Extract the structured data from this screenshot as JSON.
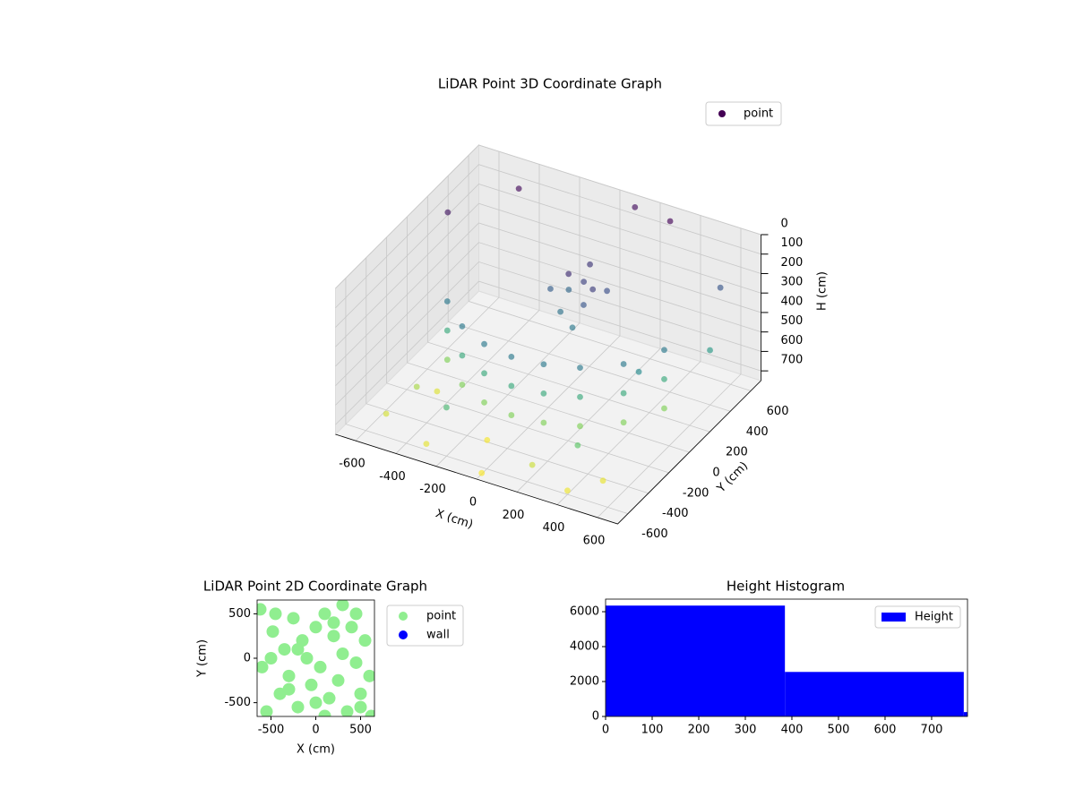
{
  "chart_data": [
    {
      "type": "scatter3d",
      "title": "LiDAR Point 3D Coordinate Graph",
      "xlabel": "X (cm)",
      "ylabel": "Y (cm)",
      "zlabel": "H (cm)",
      "xlim": [
        -700,
        700
      ],
      "ylim": [
        -700,
        700
      ],
      "zlim": [
        750,
        0
      ],
      "xticks": [
        -600,
        -400,
        -200,
        0,
        200,
        400,
        600
      ],
      "yticks": [
        -600,
        -400,
        -200,
        0,
        200,
        400,
        600
      ],
      "zticks": [
        0,
        100,
        200,
        300,
        400,
        500,
        600,
        700
      ],
      "grid": true,
      "legend": "upper right",
      "colormap": "viridis",
      "series": [
        {
          "name": "point",
          "color": "#440154",
          "x": [
            -450,
            -300,
            -150,
            0,
            150,
            300,
            450,
            550,
            -450,
            -300,
            -150,
            0,
            150,
            300,
            450,
            550,
            -450,
            -300,
            -150,
            0,
            150,
            300,
            450,
            550,
            50,
            100,
            150,
            0,
            80,
            120,
            -50,
            200,
            30,
            170,
            -600,
            -400,
            300,
            500,
            650,
            -200,
            400,
            -500,
            600,
            100,
            -550,
            -300,
            -100,
            200,
            400,
            -450,
            0,
            500
          ],
          "y": [
            -100,
            -250,
            -330,
            -360,
            -340,
            -280,
            -150,
            50,
            -100,
            -250,
            -330,
            -360,
            -340,
            -280,
            -150,
            50,
            -100,
            -250,
            -330,
            -360,
            -340,
            -280,
            -150,
            50,
            100,
            150,
            50,
            200,
            250,
            0,
            120,
            180,
            60,
            100,
            200,
            500,
            600,
            -100,
            300,
            -600,
            -500,
            -300,
            500,
            650,
            -500,
            -600,
            -400,
            -550,
            -600,
            -200,
            -650,
            -450
          ],
          "z": [
            300,
            300,
            300,
            300,
            300,
            300,
            300,
            300,
            450,
            450,
            450,
            450,
            450,
            450,
            450,
            450,
            600,
            600,
            600,
            600,
            600,
            600,
            600,
            600,
            100,
            150,
            200,
            250,
            120,
            300,
            220,
            180,
            280,
            140,
            50,
            20,
            10,
            350,
            400,
            500,
            550,
            650,
            200,
            30,
            700,
            720,
            740,
            690,
            730,
            710,
            745,
            725
          ]
        }
      ]
    },
    {
      "type": "scatter",
      "title": "LiDAR Point 2D Coordinate Graph",
      "xlabel": "X (cm)",
      "ylabel": "Y (cm)",
      "xlim": [
        -655,
        655
      ],
      "ylim": [
        -655,
        655
      ],
      "xticks": [
        -500,
        0,
        500
      ],
      "yticks": [
        -500,
        0,
        500
      ],
      "legend": "outside right",
      "series": [
        {
          "name": "point",
          "color": "#90ee90",
          "x": [
            -620,
            -550,
            -480,
            -400,
            -350,
            -300,
            -250,
            -200,
            -150,
            -100,
            -50,
            0,
            50,
            100,
            150,
            200,
            250,
            300,
            350,
            400,
            450,
            500,
            550,
            600,
            -600,
            -450,
            -200,
            100,
            300,
            500,
            -300,
            0,
            200,
            -500,
            450,
            620
          ],
          "y": [
            550,
            -600,
            300,
            -400,
            100,
            -200,
            450,
            -550,
            200,
            0,
            -300,
            350,
            -100,
            500,
            -450,
            250,
            -250,
            50,
            -600,
            350,
            -50,
            -400,
            200,
            -200,
            -100,
            500,
            100,
            -650,
            600,
            -550,
            -350,
            -500,
            400,
            0,
            500,
            -650
          ]
        },
        {
          "name": "wall",
          "color": "#0000ff",
          "x": [],
          "y": []
        }
      ]
    },
    {
      "type": "histogram",
      "title": "Height Histogram",
      "bins": [
        0,
        385,
        769,
        777
      ],
      "counts": [
        6350,
        2550,
        250
      ],
      "name": "Height",
      "color": "#0000ff",
      "legend": "upper right",
      "xlim": [
        0,
        777
      ],
      "ylim": [
        0,
        6720
      ],
      "xticks": [
        0,
        100,
        200,
        300,
        400,
        500,
        600,
        700
      ],
      "yticks": [
        0,
        2000,
        4000,
        6000
      ]
    }
  ]
}
